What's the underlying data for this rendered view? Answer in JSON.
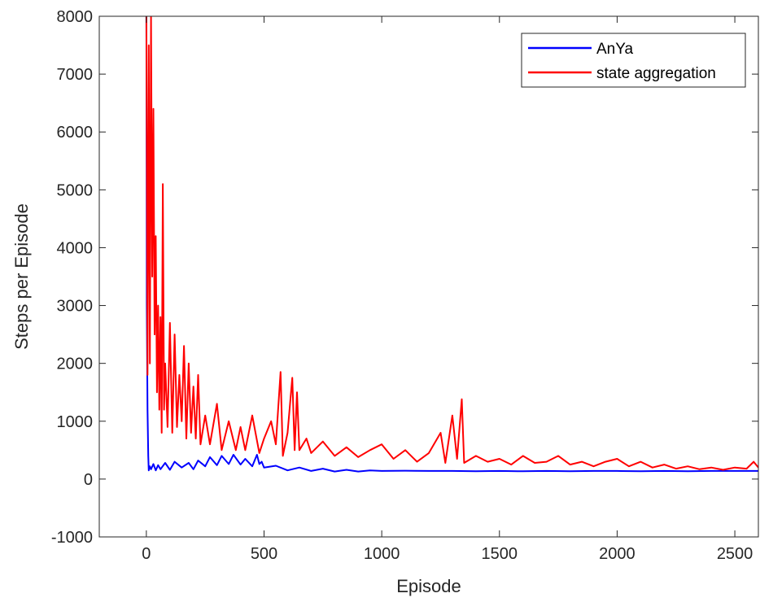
{
  "chart_data": {
    "type": "line",
    "title": "",
    "xlabel": "Episode",
    "ylabel": "Steps per Episode",
    "xlim": [
      -200,
      2600
    ],
    "ylim": [
      -1000,
      8000
    ],
    "xticks": [
      0,
      500,
      1000,
      1500,
      2000,
      2500
    ],
    "yticks": [
      -1000,
      0,
      1000,
      2000,
      3000,
      4000,
      5000,
      6000,
      7000,
      8000
    ],
    "grid": false,
    "legend_position": "top-right",
    "series": [
      {
        "name": "AnYa",
        "color": "#0000ff",
        "x": [
          0,
          2,
          5,
          8,
          10,
          15,
          20,
          30,
          40,
          50,
          60,
          80,
          100,
          120,
          150,
          180,
          200,
          220,
          250,
          270,
          300,
          320,
          350,
          370,
          400,
          420,
          450,
          470,
          480,
          490,
          500,
          550,
          600,
          650,
          700,
          750,
          800,
          850,
          900,
          950,
          1000,
          1100,
          1200,
          1300,
          1400,
          1500,
          1600,
          1700,
          1800,
          1900,
          2000,
          2100,
          2200,
          2300,
          2400,
          2500,
          2600
        ],
        "y": [
          8000,
          3000,
          1200,
          400,
          150,
          220,
          170,
          260,
          150,
          240,
          170,
          280,
          160,
          300,
          200,
          280,
          170,
          320,
          220,
          380,
          240,
          400,
          260,
          420,
          250,
          350,
          220,
          420,
          260,
          300,
          200,
          230,
          150,
          200,
          140,
          180,
          130,
          160,
          130,
          150,
          140,
          145,
          140,
          140,
          135,
          140,
          135,
          140,
          135,
          140,
          140,
          135,
          140,
          135,
          140,
          140,
          140
        ]
      },
      {
        "name": "state aggregation",
        "color": "#ff0000",
        "x": [
          0,
          5,
          10,
          15,
          20,
          25,
          30,
          35,
          40,
          45,
          50,
          55,
          60,
          65,
          70,
          75,
          80,
          90,
          100,
          110,
          120,
          130,
          140,
          150,
          160,
          170,
          180,
          190,
          200,
          210,
          220,
          230,
          250,
          270,
          300,
          320,
          350,
          380,
          400,
          420,
          450,
          480,
          500,
          530,
          550,
          570,
          580,
          600,
          620,
          630,
          640,
          650,
          680,
          700,
          750,
          800,
          850,
          900,
          950,
          1000,
          1050,
          1100,
          1150,
          1200,
          1250,
          1270,
          1300,
          1320,
          1340,
          1350,
          1400,
          1450,
          1500,
          1550,
          1600,
          1650,
          1700,
          1750,
          1800,
          1850,
          1900,
          1950,
          2000,
          2050,
          2100,
          2150,
          2200,
          2250,
          2300,
          2350,
          2400,
          2450,
          2500,
          2550,
          2580,
          2600
        ],
        "y": [
          8000,
          1800,
          7500,
          2000,
          8000,
          3500,
          6400,
          2500,
          4200,
          1500,
          3000,
          1200,
          2800,
          800,
          5100,
          1200,
          2000,
          900,
          2700,
          800,
          2500,
          900,
          1800,
          1000,
          2300,
          700,
          2000,
          800,
          1600,
          700,
          1800,
          600,
          1100,
          600,
          1300,
          500,
          1000,
          500,
          900,
          500,
          1100,
          450,
          700,
          1000,
          600,
          1850,
          400,
          800,
          1750,
          500,
          1500,
          500,
          700,
          450,
          650,
          400,
          550,
          380,
          500,
          600,
          350,
          500,
          300,
          450,
          800,
          280,
          1100,
          350,
          1380,
          280,
          400,
          300,
          350,
          250,
          400,
          280,
          300,
          400,
          250,
          300,
          220,
          300,
          350,
          220,
          300,
          200,
          250,
          180,
          220,
          170,
          200,
          160,
          200,
          180,
          300,
          200
        ]
      }
    ]
  }
}
